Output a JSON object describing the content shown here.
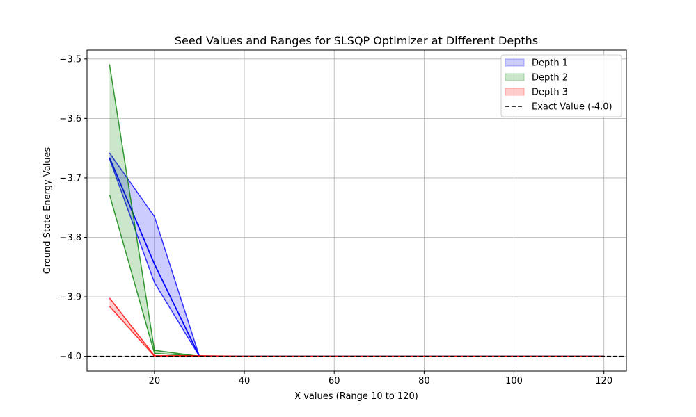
{
  "chart_data": {
    "type": "area",
    "title": "Seed Values and Ranges for SLSQP Optimizer at Different Depths",
    "xlabel": "X values (Range 10 to 120)",
    "ylabel": "Ground State Energy Values",
    "xlim": [
      5,
      125
    ],
    "ylim": [
      -4.025,
      -3.485
    ],
    "xticks": [
      20,
      40,
      60,
      80,
      100,
      120
    ],
    "xtick_labels": [
      "20",
      "40",
      "60",
      "80",
      "100",
      "120"
    ],
    "yticks": [
      -4.0,
      -3.9,
      -3.8,
      -3.7,
      -3.6,
      -3.5
    ],
    "ytick_labels": [
      "−4.0",
      "−3.9",
      "−3.8",
      "−3.7",
      "−3.6",
      "−3.5"
    ],
    "grid": true,
    "legend_position": "top-right",
    "x": [
      10,
      20,
      30,
      40,
      50,
      60,
      70,
      80,
      90,
      100,
      110,
      120
    ],
    "series": [
      {
        "name": "Depth 1",
        "color": "#0000ff",
        "upper": [
          -3.658,
          -3.765,
          -4.0,
          -4.0,
          -4.0,
          -4.0,
          -4.0,
          -4.0,
          -4.0,
          -4.0,
          -4.0,
          -4.0
        ],
        "lower": [
          -3.668,
          -3.876,
          -4.0,
          -4.0,
          -4.0,
          -4.0,
          -4.0,
          -4.0,
          -4.0,
          -4.0,
          -4.0,
          -4.0
        ],
        "line": [
          -3.666,
          -3.845,
          -4.0,
          -4.0,
          -4.0,
          -4.0,
          -4.0,
          -4.0,
          -4.0,
          -4.0,
          -4.0,
          -4.0
        ]
      },
      {
        "name": "Depth 2",
        "color": "#008000",
        "upper": [
          -3.509,
          -3.99,
          -4.0,
          -4.0,
          -4.0,
          -4.0,
          -4.0,
          -4.0,
          -4.0,
          -4.0,
          -4.0,
          -4.0
        ],
        "lower": [
          -3.728,
          -3.995,
          -4.0,
          -4.0,
          -4.0,
          -4.0,
          -4.0,
          -4.0,
          -4.0,
          -4.0,
          -4.0,
          -4.0
        ],
        "line": null
      },
      {
        "name": "Depth 3",
        "color": "#ff0000",
        "upper": [
          -3.902,
          -3.999,
          -3.999,
          -4.0,
          -4.0,
          -4.0,
          -4.0,
          -4.0,
          -4.0,
          -4.0,
          -4.0,
          -4.0
        ],
        "lower": [
          -3.916,
          -4.0,
          -4.0,
          -4.0,
          -4.0,
          -4.0,
          -4.0,
          -4.0,
          -4.0,
          -4.0,
          -4.0,
          -4.0
        ],
        "line": null
      }
    ],
    "reference_line": {
      "name": "Exact Value (-4.0)",
      "y": -4.0,
      "color": "#000000",
      "style": "dashed"
    }
  }
}
